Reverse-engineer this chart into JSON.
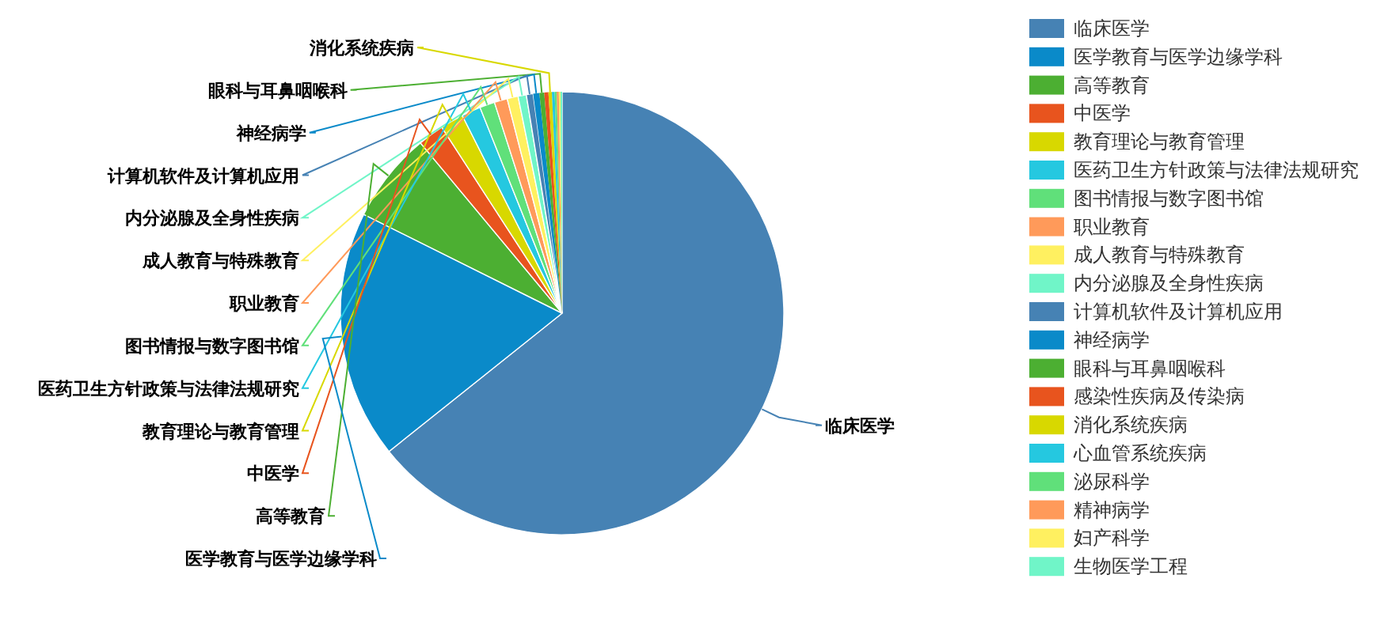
{
  "chart_data": {
    "type": "pie",
    "categories": [
      "临床医学",
      "医学教育与医学边缘学科",
      "高等教育",
      "中医学",
      "教育理论与教育管理",
      "医药卫生方针政策与法律法规研究",
      "图书情报与数字图书馆",
      "职业教育",
      "成人教育与特殊教育",
      "内分泌腺及全身性疾病",
      "计算机软件及计算机应用",
      "神经病学",
      "眼科与耳鼻咽喉科",
      "感染性疾病及传染病",
      "消化系统疾病",
      "心血管系统疾病",
      "泌尿科学",
      "精神病学",
      "妇产科学",
      "生物医学工程"
    ],
    "values": [
      64.28,
      18.1,
      6.6,
      1.9,
      1.7,
      1.4,
      1.1,
      0.95,
      0.8,
      0.6,
      0.5,
      0.45,
      0.35,
      0.3,
      0.25,
      0.2,
      0.15,
      0.15,
      0.12,
      0.12
    ],
    "colors": [
      "#4682b4",
      "#0a8ac9",
      "#4caf32",
      "#e8541e",
      "#d8d800",
      "#25c8e0",
      "#60e07a",
      "#ff9a5a",
      "#fff060",
      "#70f5c8",
      "#4682b4",
      "#0a8ac9",
      "#4caf32",
      "#e8541e",
      "#d8d800",
      "#25c8e0",
      "#60e07a",
      "#ff9a5a",
      "#fff060",
      "#70f5c8"
    ],
    "value_labels": [
      "临床医学",
      "医学教育与医学边缘学科",
      "高等教育",
      "中医学",
      "教育理论与教育管理",
      "医药卫生方针政策与法律法规研究",
      "图书情报与数字图书馆",
      "职业教育",
      "成人教育与特殊教育",
      "内分泌腺及全身性疾病",
      "计算机软件及计算机应用",
      "神经病学",
      "眼科与耳鼻咽喉科",
      null,
      "消化系统疾病",
      null,
      null,
      null,
      null,
      null
    ],
    "legend": "right"
  }
}
